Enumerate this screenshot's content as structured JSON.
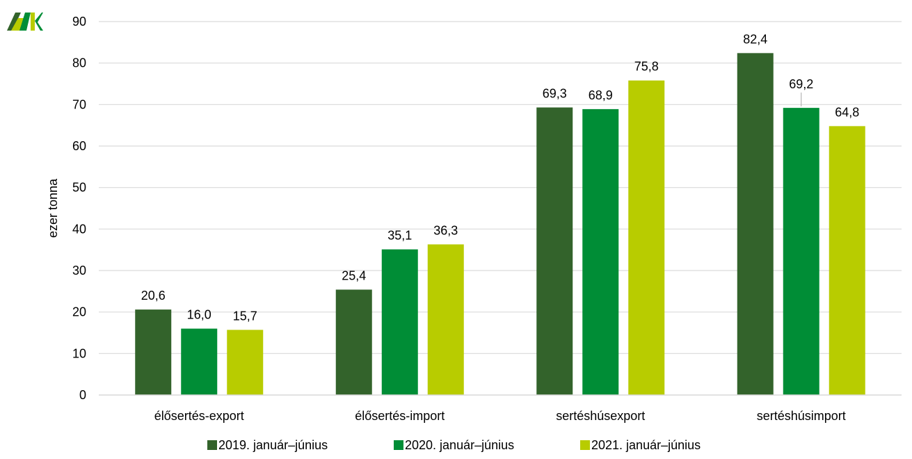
{
  "logo": {
    "text": "AKI"
  },
  "chart_data": {
    "type": "bar",
    "ylabel": "ezer tonna",
    "ylim": [
      0,
      90
    ],
    "yticks": [
      0,
      10,
      20,
      30,
      40,
      50,
      60,
      70,
      80,
      90
    ],
    "grid": true,
    "legend_position": "bottom",
    "categories": [
      "élősertés-export",
      "élősertés-import",
      "sertéshúsexport",
      "sertéshúsimport"
    ],
    "series": [
      {
        "name": "2019. január–június",
        "color": "#33632b",
        "values": [
          20.6,
          25.4,
          69.3,
          82.4
        ],
        "labels": [
          "20,6",
          "25,4",
          "69,3",
          "82,4"
        ]
      },
      {
        "name": "2020. január–június",
        "color": "#008d36",
        "values": [
          16.0,
          35.1,
          68.9,
          69.2
        ],
        "labels": [
          "16,0",
          "35,1",
          "68,9",
          "69,2"
        ]
      },
      {
        "name": "2021. január–június",
        "color": "#b8cc00",
        "values": [
          15.7,
          36.3,
          75.8,
          64.8
        ],
        "labels": [
          "15,7",
          "36,3",
          "75,8",
          "64,8"
        ]
      }
    ]
  }
}
